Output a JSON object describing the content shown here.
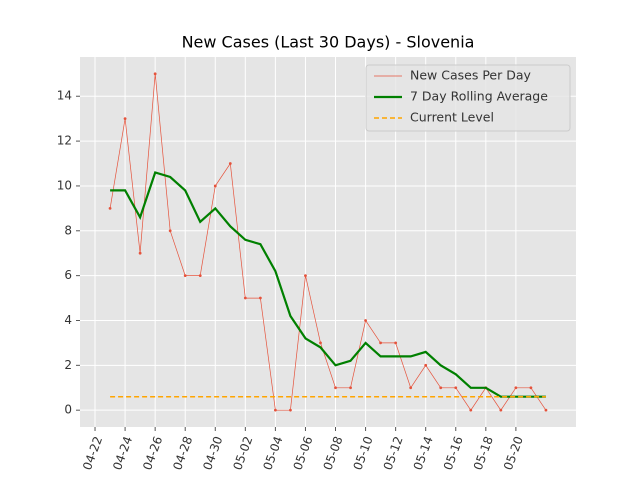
{
  "chart_data": {
    "type": "line",
    "title": "New Cases (Last 30 Days) - Slovenia",
    "x": [
      "04-23",
      "04-24",
      "04-25",
      "04-26",
      "04-27",
      "04-28",
      "04-29",
      "04-30",
      "05-01",
      "05-02",
      "05-03",
      "05-04",
      "05-05",
      "05-06",
      "05-07",
      "05-08",
      "05-09",
      "05-10",
      "05-11",
      "05-12",
      "05-13",
      "05-14",
      "05-15",
      "05-16",
      "05-17",
      "05-18",
      "05-19",
      "05-20",
      "05-21",
      "05-22"
    ],
    "series": [
      {
        "name": "New Cases Per Day",
        "color": "#e5533c",
        "style": "thin-markers",
        "values": [
          9,
          13,
          7,
          15,
          8,
          6,
          6,
          10,
          11,
          5,
          5,
          0,
          0,
          6,
          3,
          1,
          1,
          4,
          3,
          3,
          1,
          2,
          1,
          1,
          0,
          1,
          0,
          1,
          1,
          0
        ]
      },
      {
        "name": "7 Day Rolling Average",
        "color": "#008000",
        "style": "solid",
        "values": [
          9.8,
          9.8,
          8.6,
          10.6,
          10.4,
          9.8,
          8.4,
          9.0,
          8.2,
          7.6,
          7.4,
          6.2,
          4.2,
          3.2,
          2.8,
          2.0,
          2.2,
          3.0,
          2.4,
          2.4,
          2.4,
          2.6,
          2.0,
          1.6,
          1.0,
          1.0,
          0.6,
          0.6,
          0.6,
          0.6
        ]
      },
      {
        "name": "Current Level",
        "color": "#ffa500",
        "style": "dashed",
        "values": [
          0.6,
          0.6,
          0.6,
          0.6,
          0.6,
          0.6,
          0.6,
          0.6,
          0.6,
          0.6,
          0.6,
          0.6,
          0.6,
          0.6,
          0.6,
          0.6,
          0.6,
          0.6,
          0.6,
          0.6,
          0.6,
          0.6,
          0.6,
          0.6,
          0.6,
          0.6,
          0.6,
          0.6,
          0.6,
          0.6
        ]
      }
    ],
    "xlim": [
      "04-21",
      "05-24"
    ],
    "xticks": [
      "04-22",
      "04-24",
      "04-26",
      "04-28",
      "04-30",
      "05-02",
      "05-04",
      "05-06",
      "05-08",
      "05-10",
      "05-12",
      "05-14",
      "05-16",
      "05-18",
      "05-20"
    ],
    "ylim": [
      -0.75,
      15.75
    ],
    "yticks": [
      0,
      2,
      4,
      6,
      8,
      10,
      12,
      14
    ],
    "grid": true,
    "legend": "upper-right"
  }
}
